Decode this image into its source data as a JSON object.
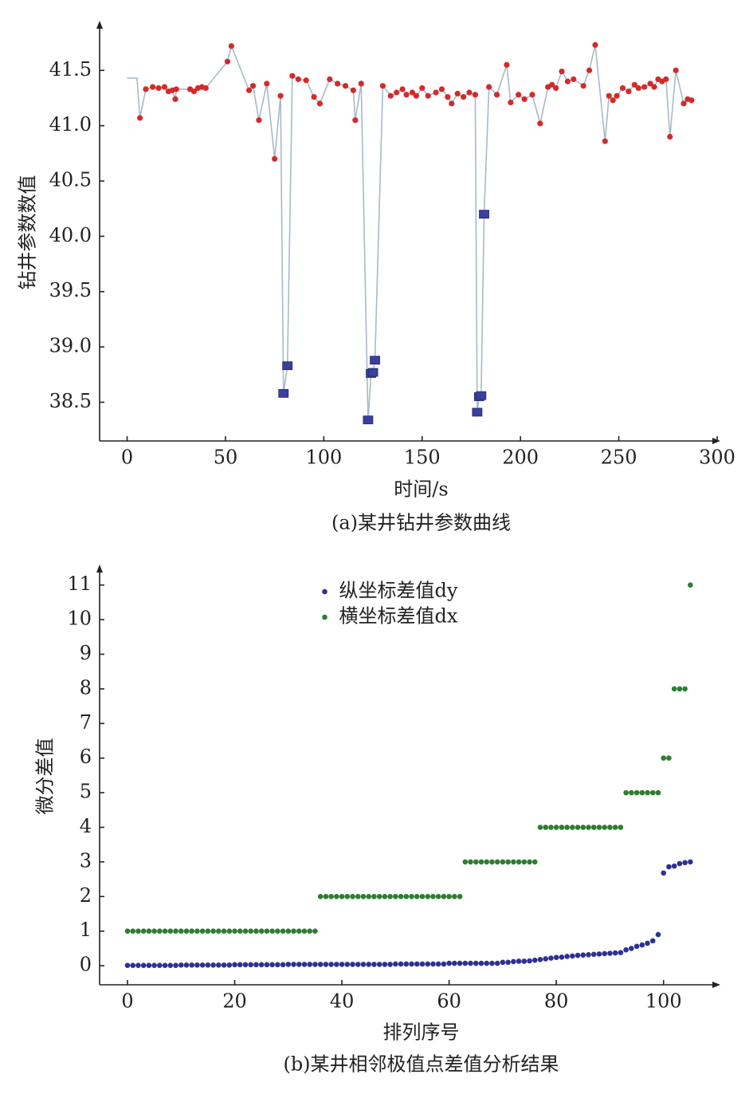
{
  "chart_data": [
    {
      "type": "line",
      "caption": "(a)某井钻井参数曲线",
      "xlabel": "时间/s",
      "ylabel": "钻井参数数值",
      "xlim": [
        -14,
        300
      ],
      "xticks": [
        0,
        50,
        100,
        150,
        200,
        250,
        300
      ],
      "ylim": [
        38.15,
        41.92
      ],
      "yticks": [
        38.5,
        {
          "value": 39,
          "label": "39.0"
        },
        39.5,
        {
          "value": 40,
          "label": "40.0"
        },
        40.5,
        {
          "value": 41,
          "label": "41.0"
        },
        41.5
      ],
      "series": [
        {
          "color": "#a8bac8",
          "x": [
            0,
            5,
            6.5,
            9.5,
            13,
            16,
            19,
            21,
            23,
            24.5,
            25,
            32,
            34,
            36,
            38,
            40,
            51,
            53,
            62,
            64,
            67,
            71,
            75,
            78,
            79.5,
            81.5,
            84,
            87,
            91,
            95,
            98,
            103,
            107,
            111,
            115,
            116,
            119,
            122.5,
            124,
            125,
            126,
            130,
            134,
            137,
            140,
            142,
            145,
            147,
            150,
            153,
            157,
            160,
            163,
            165,
            168,
            171,
            174,
            177,
            178,
            179,
            180,
            181.5,
            184,
            188,
            193,
            195,
            199,
            202,
            206,
            210,
            214,
            216,
            218,
            221,
            224,
            227,
            232,
            235,
            238,
            243,
            245,
            247,
            249,
            252,
            255,
            258,
            260,
            263,
            266,
            268,
            270,
            272,
            274,
            276,
            279,
            283,
            285,
            287
          ],
          "values": [
            41.43,
            41.43,
            41.07,
            41.33,
            41.35,
            41.34,
            41.35,
            41.31,
            41.32,
            41.24,
            41.33,
            41.33,
            41.31,
            41.34,
            41.35,
            41.34,
            41.58,
            41.72,
            41.32,
            41.36,
            41.05,
            41.38,
            40.7,
            41.27,
            38.58,
            38.83,
            41.45,
            41.42,
            41.41,
            41.26,
            41.2,
            41.42,
            41.38,
            41.36,
            41.32,
            41.05,
            41.38,
            38.34,
            38.76,
            38.77,
            38.88,
            41.36,
            41.27,
            41.3,
            41.33,
            41.28,
            41.3,
            41.27,
            41.34,
            41.27,
            41.3,
            41.33,
            41.26,
            41.2,
            41.29,
            41.26,
            41.3,
            41.28,
            38.41,
            38.55,
            38.56,
            40.2,
            41.35,
            41.28,
            41.55,
            41.21,
            41.28,
            41.24,
            41.28,
            41.02,
            41.35,
            41.37,
            41.34,
            41.49,
            41.4,
            41.42,
            41.36,
            41.5,
            41.73,
            40.86,
            41.27,
            41.23,
            41.27,
            41.34,
            41.31,
            41.37,
            41.34,
            41.35,
            41.38,
            41.35,
            41.42,
            41.4,
            41.42,
            40.9,
            41.5,
            41.2,
            41.24,
            41.23
          ]
        },
        {
          "color": "#d42a2a",
          "marker": "circle",
          "x": [
            6.5,
            9.5,
            13,
            16,
            19,
            21,
            23,
            24.5,
            25,
            32,
            34,
            36,
            38,
            40,
            51,
            53,
            62,
            64,
            67,
            71,
            75,
            78,
            84,
            87,
            91,
            95,
            98,
            103,
            107,
            111,
            115,
            116,
            119,
            130,
            134,
            137,
            140,
            142,
            145,
            147,
            150,
            153,
            157,
            160,
            163,
            165,
            168,
            171,
            174,
            177,
            184,
            188,
            193,
            195,
            199,
            202,
            206,
            210,
            214,
            216,
            218,
            221,
            224,
            227,
            232,
            235,
            238,
            243,
            245,
            247,
            249,
            252,
            255,
            258,
            260,
            263,
            266,
            268,
            270,
            272,
            274,
            276,
            279,
            283,
            285,
            287
          ],
          "values": [
            41.07,
            41.33,
            41.35,
            41.34,
            41.35,
            41.31,
            41.32,
            41.24,
            41.33,
            41.33,
            41.31,
            41.34,
            41.35,
            41.34,
            41.58,
            41.72,
            41.32,
            41.36,
            41.05,
            41.38,
            40.7,
            41.27,
            41.45,
            41.42,
            41.41,
            41.26,
            41.2,
            41.42,
            41.38,
            41.36,
            41.32,
            41.05,
            41.38,
            41.36,
            41.27,
            41.3,
            41.33,
            41.28,
            41.3,
            41.27,
            41.34,
            41.27,
            41.3,
            41.33,
            41.26,
            41.2,
            41.29,
            41.26,
            41.3,
            41.28,
            41.35,
            41.28,
            41.55,
            41.21,
            41.28,
            41.24,
            41.28,
            41.02,
            41.35,
            41.37,
            41.34,
            41.49,
            41.4,
            41.42,
            41.36,
            41.5,
            41.73,
            40.86,
            41.27,
            41.23,
            41.27,
            41.34,
            41.31,
            41.37,
            41.34,
            41.35,
            41.38,
            41.35,
            41.42,
            41.4,
            41.42,
            40.9,
            41.5,
            41.2,
            41.24,
            41.23
          ]
        },
        {
          "color": "#3a3f9e",
          "marker": "square",
          "x": [
            79.5,
            81.5,
            122.5,
            124,
            125,
            126,
            178,
            179,
            180,
            181.5
          ],
          "values": [
            38.58,
            38.83,
            38.34,
            38.76,
            38.77,
            38.88,
            38.41,
            38.55,
            38.56,
            40.2
          ]
        }
      ]
    },
    {
      "type": "scatter",
      "caption": "(b)某井相邻极值点差值分析结果",
      "xlabel": "排列序号",
      "ylabel": "微分差值",
      "xlim": [
        -5.2,
        110
      ],
      "xticks": [
        0,
        20,
        40,
        60,
        80,
        100
      ],
      "ylim": [
        -0.55,
        11.5
      ],
      "yticks": [
        0,
        1,
        2,
        3,
        4,
        5,
        6,
        7,
        8,
        9,
        10,
        11
      ],
      "legend": "upper center",
      "x": [
        0,
        1,
        2,
        3,
        4,
        5,
        6,
        7,
        8,
        9,
        10,
        11,
        12,
        13,
        14,
        15,
        16,
        17,
        18,
        19,
        20,
        21,
        22,
        23,
        24,
        25,
        26,
        27,
        28,
        29,
        30,
        31,
        32,
        33,
        34,
        35,
        36,
        37,
        38,
        39,
        40,
        41,
        42,
        43,
        44,
        45,
        46,
        47,
        48,
        49,
        50,
        51,
        52,
        53,
        54,
        55,
        56,
        57,
        58,
        59,
        60,
        61,
        62,
        63,
        64,
        65,
        66,
        67,
        68,
        69,
        70,
        71,
        72,
        73,
        74,
        75,
        76,
        77,
        78,
        79,
        80,
        81,
        82,
        83,
        84,
        85,
        86,
        87,
        88,
        89,
        90,
        91,
        92,
        93,
        94,
        95,
        96,
        97,
        98,
        99,
        100,
        101,
        102,
        103,
        104,
        105
      ],
      "series": [
        {
          "name": "纵坐标差值dy",
          "color": "#2e3192",
          "marker": "circle",
          "values": [
            0.01,
            0.01,
            0.01,
            0.01,
            0.01,
            0.01,
            0.01,
            0.01,
            0.01,
            0.01,
            0.02,
            0.02,
            0.02,
            0.02,
            0.02,
            0.02,
            0.02,
            0.02,
            0.02,
            0.02,
            0.03,
            0.03,
            0.03,
            0.03,
            0.03,
            0.03,
            0.03,
            0.03,
            0.03,
            0.03,
            0.04,
            0.04,
            0.04,
            0.04,
            0.04,
            0.04,
            0.04,
            0.04,
            0.04,
            0.04,
            0.04,
            0.04,
            0.04,
            0.04,
            0.04,
            0.04,
            0.04,
            0.04,
            0.04,
            0.04,
            0.05,
            0.05,
            0.05,
            0.05,
            0.05,
            0.05,
            0.05,
            0.05,
            0.05,
            0.05,
            0.07,
            0.07,
            0.07,
            0.07,
            0.07,
            0.07,
            0.07,
            0.07,
            0.07,
            0.07,
            0.1,
            0.1,
            0.12,
            0.13,
            0.13,
            0.14,
            0.16,
            0.18,
            0.2,
            0.22,
            0.24,
            0.25,
            0.27,
            0.28,
            0.3,
            0.31,
            0.32,
            0.33,
            0.34,
            0.35,
            0.36,
            0.37,
            0.38,
            0.46,
            0.5,
            0.56,
            0.6,
            0.65,
            0.72,
            0.9,
            2.68,
            2.86,
            2.88,
            2.95,
            2.98,
            3.0
          ]
        },
        {
          "name": "横坐标差值dx",
          "color": "#2e7d32",
          "marker": "circle",
          "values": [
            1,
            1,
            1,
            1,
            1,
            1,
            1,
            1,
            1,
            1,
            1,
            1,
            1,
            1,
            1,
            1,
            1,
            1,
            1,
            1,
            1,
            1,
            1,
            1,
            1,
            1,
            1,
            1,
            1,
            1,
            1,
            1,
            1,
            1,
            1,
            1,
            2,
            2,
            2,
            2,
            2,
            2,
            2,
            2,
            2,
            2,
            2,
            2,
            2,
            2,
            2,
            2,
            2,
            2,
            2,
            2,
            2,
            2,
            2,
            2,
            2,
            2,
            2,
            3,
            3,
            3,
            3,
            3,
            3,
            3,
            3,
            3,
            3,
            3,
            3,
            3,
            3,
            4,
            4,
            4,
            4,
            4,
            4,
            4,
            4,
            4,
            4,
            4,
            4,
            4,
            4,
            4,
            4,
            5,
            5,
            5,
            5,
            5,
            5,
            5,
            6,
            6,
            8,
            8,
            8,
            11
          ]
        }
      ]
    }
  ]
}
